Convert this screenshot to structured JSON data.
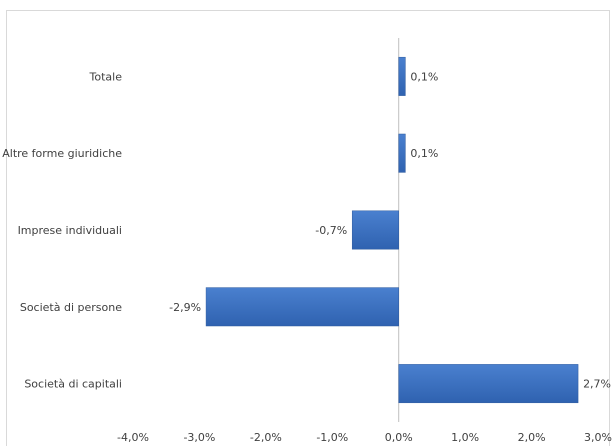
{
  "chart_data": {
    "type": "bar",
    "orientation": "horizontal",
    "title": "",
    "xlabel": "",
    "ylabel": "",
    "categories": [
      "Totale",
      "Altre forme giuridiche",
      "Imprese individuali",
      "Società di persone",
      "Società di capitali"
    ],
    "values": [
      0.1,
      0.1,
      -0.7,
      -2.9,
      2.7
    ],
    "value_labels": [
      "0,1%",
      "0,1%",
      "-0,7%",
      "-2,9%",
      "2,7%"
    ],
    "xlim": [
      -4.0,
      3.0
    ],
    "x_ticks": [
      -4.0,
      -3.0,
      -2.0,
      -1.0,
      0.0,
      1.0,
      2.0,
      3.0
    ],
    "x_tick_labels": [
      "-4,0%",
      "-3,0%",
      "-2,0%",
      "-1,0%",
      "0,0%",
      "1,0%",
      "2,0%",
      "3,0%"
    ],
    "grid": false,
    "legend": "none",
    "colors": {
      "bar": "#3a6fbf",
      "bar_edge": "#2e5a9e",
      "axis": "#bfbfbf",
      "text": "#404040"
    }
  }
}
